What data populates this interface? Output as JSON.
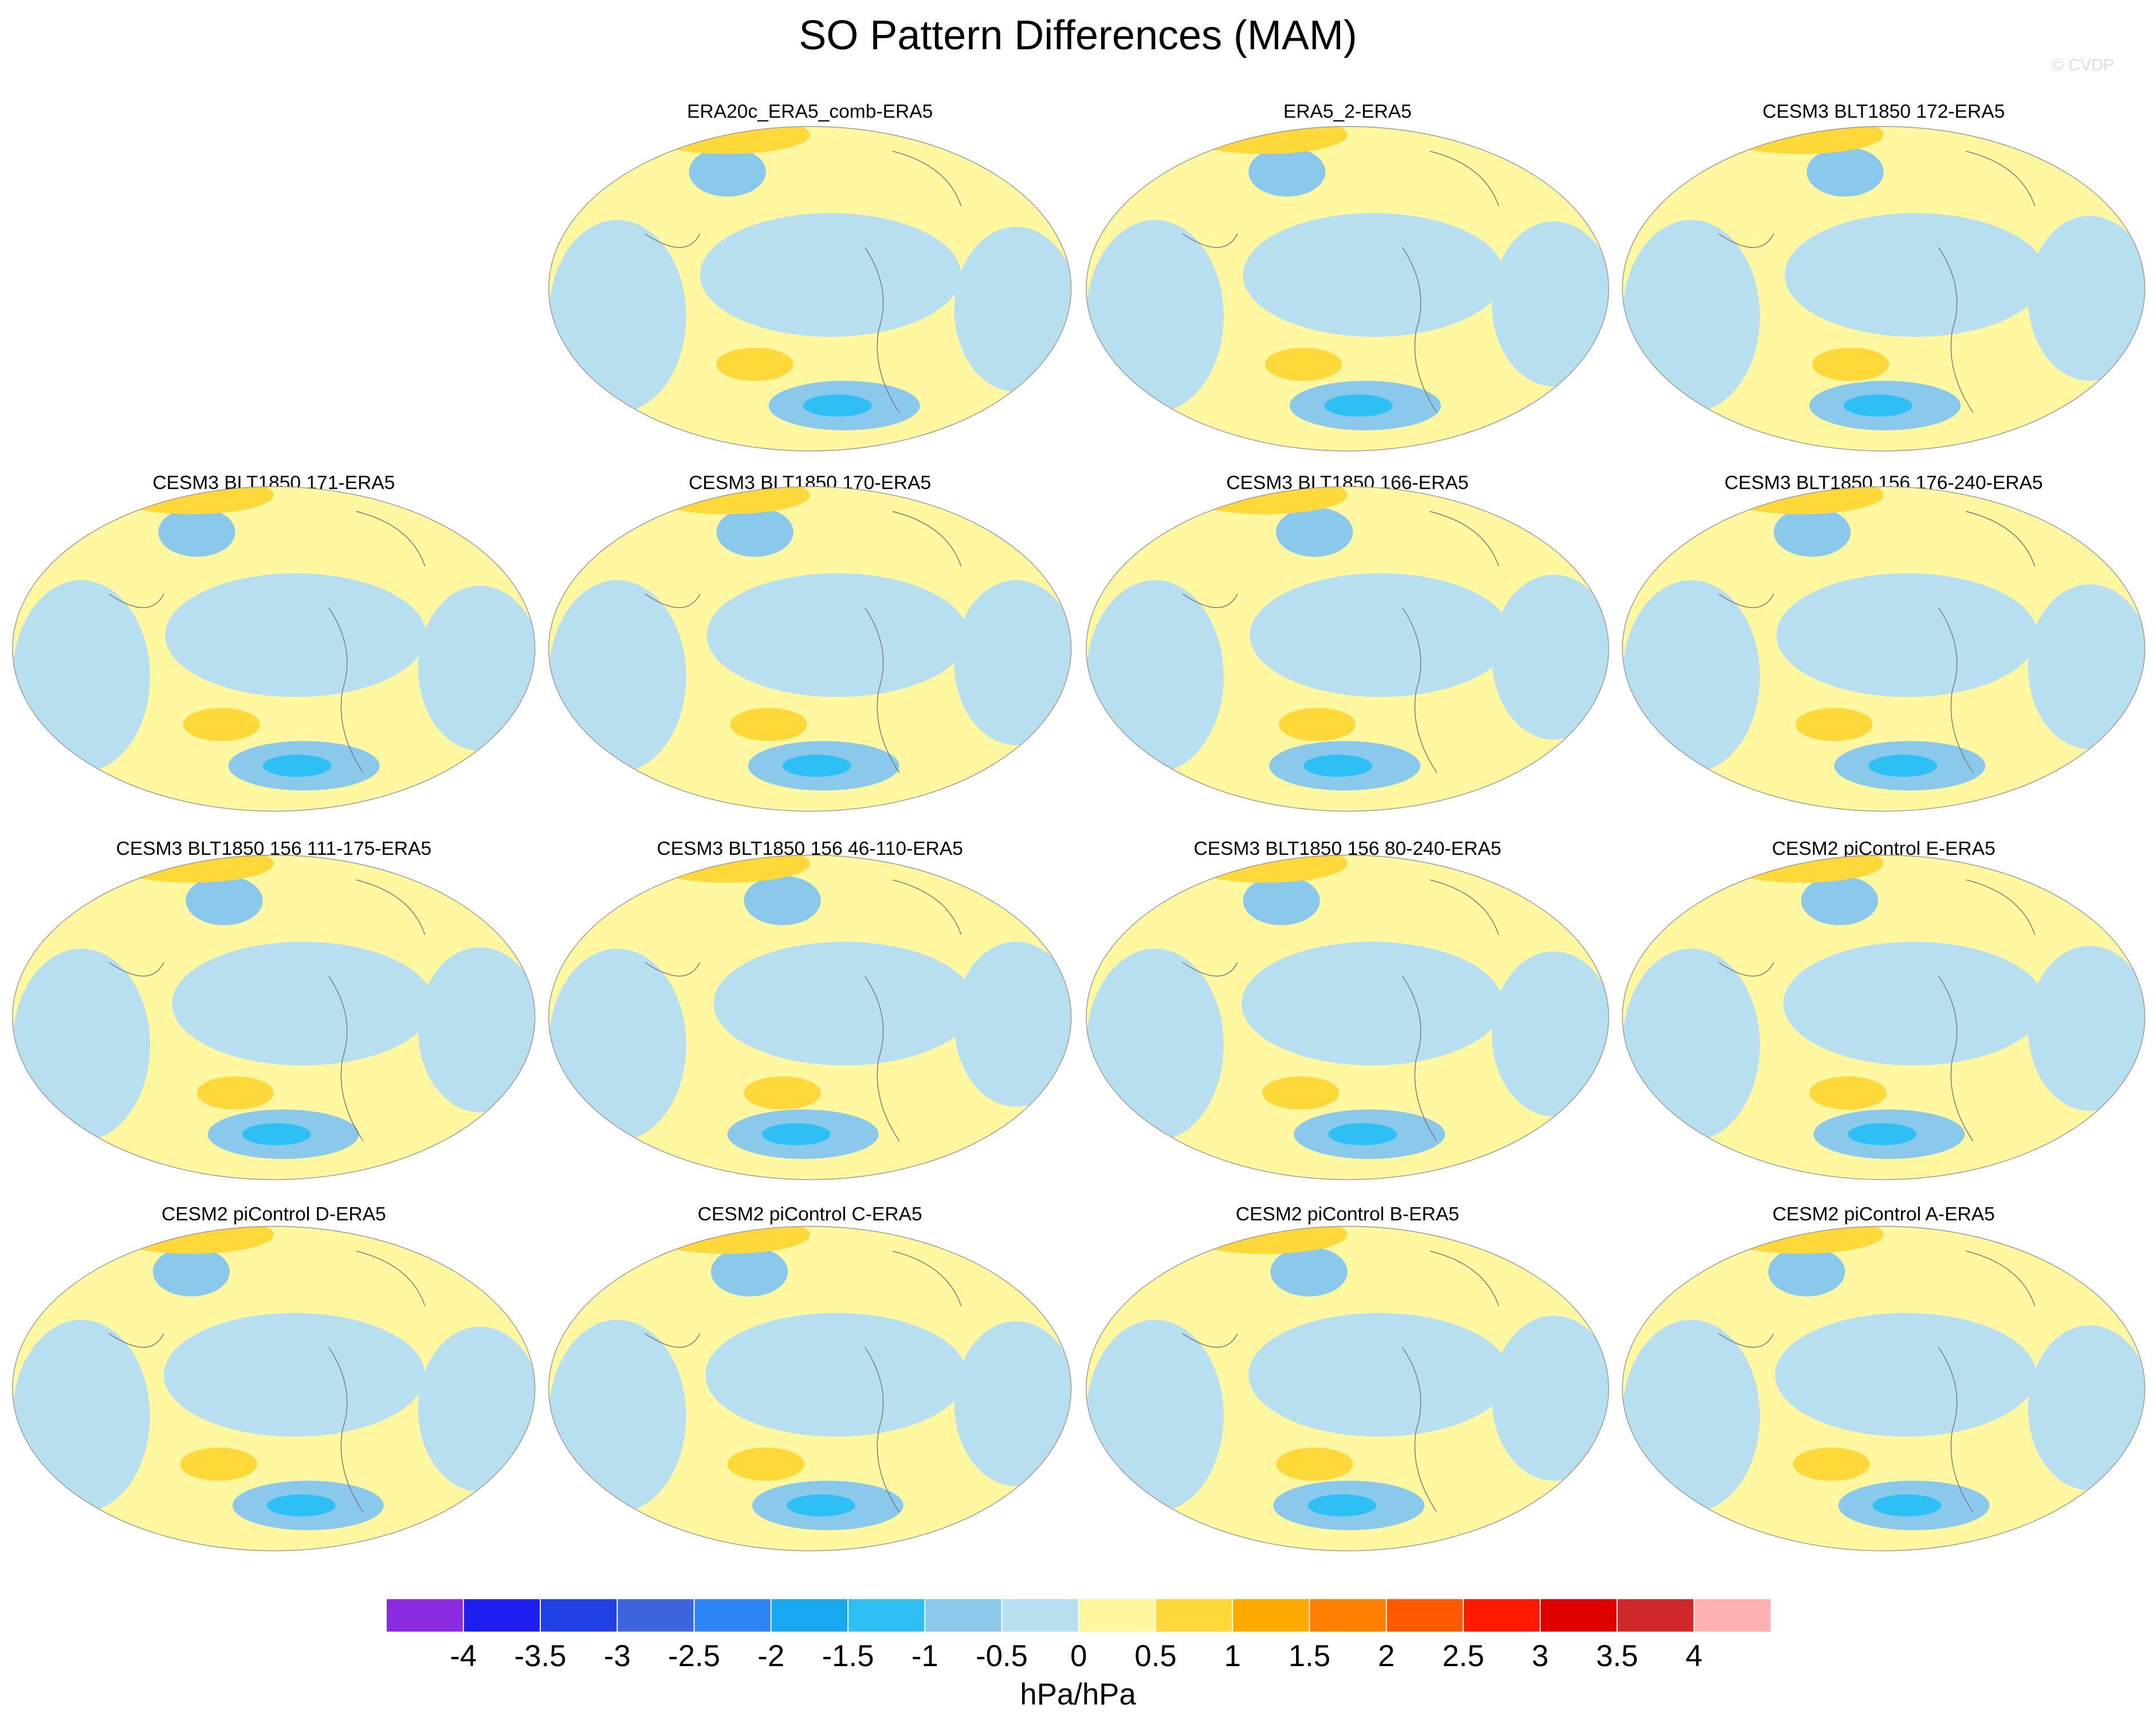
{
  "chart_data": {
    "type": "contour-map",
    "title": "SO Pattern Differences (MAM)",
    "watermark": "© CVDP",
    "panels": [
      "ERA20c_ERA5_comb-ERA5",
      "ERA5_2-ERA5",
      "CESM3 BLT1850 172-ERA5",
      "CESM3 BLT1850 171-ERA5",
      "CESM3 BLT1850 170-ERA5",
      "CESM3 BLT1850 166-ERA5",
      "CESM3 BLT1850 156 176-240-ERA5",
      "CESM3 BLT1850 156 111-175-ERA5",
      "CESM3 BLT1850 156 46-110-ERA5",
      "CESM3 BLT1850 156 80-240-ERA5",
      "CESM2 piControl E-ERA5",
      "CESM2 piControl D-ERA5",
      "CESM2 piControl C-ERA5",
      "CESM2 piControl B-ERA5",
      "CESM2 piControl A-ERA5"
    ],
    "colorbar": {
      "label": "hPa/hPa",
      "colors": [
        "#8a2be2",
        "#1e1ef0",
        "#2040e6",
        "#3c64dc",
        "#2d84f5",
        "#18a8f0",
        "#2ec0f5",
        "#8ac8ec",
        "#b8dff0",
        "#fff8a0",
        "#ffd83a",
        "#ffaa00",
        "#ff8000",
        "#ff5a00",
        "#ff1a00",
        "#e00000",
        "#d02828",
        "#ffb0b0"
      ],
      "ticks": [
        -4,
        -3.5,
        -3,
        -2.5,
        -2,
        -1.5,
        -1,
        -0.5,
        0,
        0.5,
        1,
        1.5,
        2,
        2.5,
        3,
        3.5,
        4
      ]
    }
  }
}
